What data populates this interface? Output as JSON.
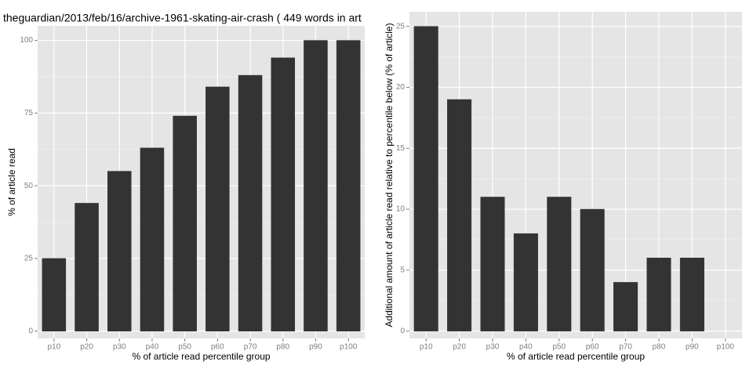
{
  "chart_data": [
    {
      "type": "bar",
      "title": "theguardian/2013/feb/16/archive-1961-skating-air-crash ( 449 words in art",
      "x_label": "% of article read percentile group",
      "y_label": "% of article read",
      "categories": [
        "p10",
        "p20",
        "p30",
        "p40",
        "p50",
        "p60",
        "p70",
        "p80",
        "p90",
        "p100"
      ],
      "values": [
        25,
        44,
        55,
        63,
        74,
        84,
        88,
        94,
        100,
        100
      ],
      "color": "#333333",
      "ylim": [
        -2.5,
        105
      ],
      "yticks": [
        0,
        25,
        50,
        75,
        100
      ],
      "grid": true
    },
    {
      "type": "bar",
      "x_label": "% of article read percentile group",
      "y_label": "Additional amount of article read relative to percentile below (% of article)",
      "categories": [
        "p10",
        "p20",
        "p30",
        "p40",
        "p50",
        "p60",
        "p70",
        "p80",
        "p90",
        "p100"
      ],
      "values": [
        25,
        19,
        11,
        8,
        11,
        10,
        4,
        6,
        6,
        0
      ],
      "color": "#333333",
      "ylim": [
        -0.6,
        26.2
      ],
      "yticks": [
        0,
        5,
        10,
        15,
        20,
        25
      ],
      "grid": true
    }
  ]
}
